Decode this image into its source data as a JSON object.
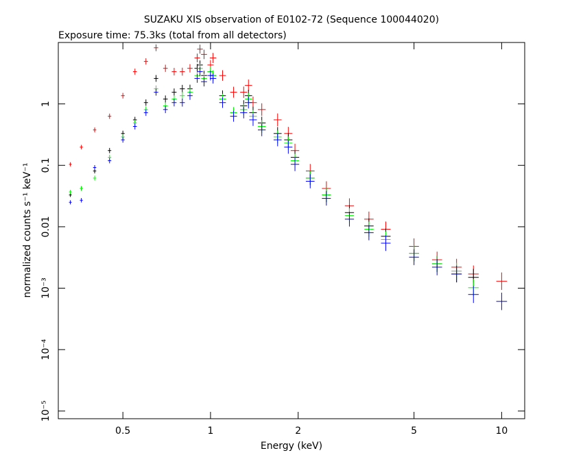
{
  "chart_data": {
    "type": "scatter",
    "title": "SUZAKU XIS observation of E0102-72 (Sequence 100044020)",
    "subtitle": "Exposure time: 75.3ks (total from all detectors)",
    "x_label": "Energy (keV)",
    "y_label": "normalized counts s⁻¹ keV⁻¹",
    "x_log": true,
    "y_log": true,
    "xlim": [
      0.3,
      12
    ],
    "ylim": [
      7.5e-06,
      10
    ],
    "xticks": [
      0.5,
      1,
      2,
      5,
      10
    ],
    "yticks": [
      {
        "value": 1e-05,
        "label": "10⁻⁵"
      },
      {
        "value": 0.0001,
        "label": "10⁻⁴"
      },
      {
        "value": 0.001,
        "label": "10⁻³"
      },
      0.01,
      0.1,
      1
    ],
    "x": [
      0.33,
      0.36,
      0.4,
      0.45,
      0.5,
      0.55,
      0.6,
      0.65,
      0.7,
      0.75,
      0.8,
      0.85,
      0.9,
      0.92,
      0.95,
      1.0,
      1.02,
      1.1,
      1.2,
      1.3,
      1.35,
      1.4,
      1.5,
      1.7,
      1.85,
      1.95,
      2.2,
      2.5,
      3,
      3.5,
      4,
      5,
      6,
      7,
      8,
      10
    ],
    "series": [
      {
        "color": "#ff0000",
        "values": [
          0.104,
          0.198,
          0.377,
          0.63,
          1.36,
          3.35,
          4.92,
          8.2,
          3.8,
          3.35,
          3.35,
          3.8,
          5.6,
          7.8,
          6.4,
          4.3,
          5.6,
          2.9,
          1.55,
          1.55,
          2.0,
          1.05,
          0.81,
          0.55,
          0.33,
          0.174,
          0.081,
          0.042,
          0.022,
          0.0133,
          0.0091,
          0.0048,
          0.0029,
          0.0022,
          0.0017,
          0.0013
        ]
      },
      {
        "color": "#000000",
        "values": [
          0.033,
          0.042,
          0.081,
          0.174,
          0.33,
          0.55,
          1.05,
          2.6,
          1.2,
          1.55,
          1.76,
          1.76,
          3.8,
          4.3,
          2.9,
          3.35,
          2.9,
          1.36,
          0.72,
          0.93,
          1.36,
          0.72,
          0.49,
          0.33,
          0.26,
          0.135,
          0.062,
          0.033,
          0.017,
          0.0103,
          0.007,
          0.0037,
          0.0025,
          0.0017,
          0.0015,
          null
        ]
      },
      {
        "color": "#00ff00",
        "values": [
          0.037,
          0.042,
          0.062,
          0.135,
          0.29,
          0.49,
          0.81,
          1.76,
          0.93,
          1.2,
          1.36,
          1.55,
          2.9,
          3.8,
          2.6,
          3.35,
          2.9,
          1.2,
          0.72,
          0.81,
          1.2,
          0.63,
          0.43,
          0.29,
          0.23,
          0.119,
          0.062,
          0.033,
          0.0152,
          0.0091,
          0.0062,
          0.0037,
          0.0025,
          0.0019,
          0.00102,
          null
        ]
      },
      {
        "color": "#0000ff",
        "values": [
          0.025,
          0.027,
          0.092,
          0.119,
          0.26,
          0.43,
          0.72,
          1.55,
          0.81,
          1.05,
          1.05,
          1.36,
          2.6,
          3.35,
          2.3,
          2.9,
          2.6,
          1.05,
          0.63,
          0.72,
          1.05,
          0.55,
          0.377,
          0.26,
          0.198,
          0.104,
          0.055,
          0.029,
          0.0133,
          0.008,
          0.0054,
          0.0032,
          0.0022,
          0.0017,
          0.00079,
          0.00061
        ]
      }
    ]
  }
}
